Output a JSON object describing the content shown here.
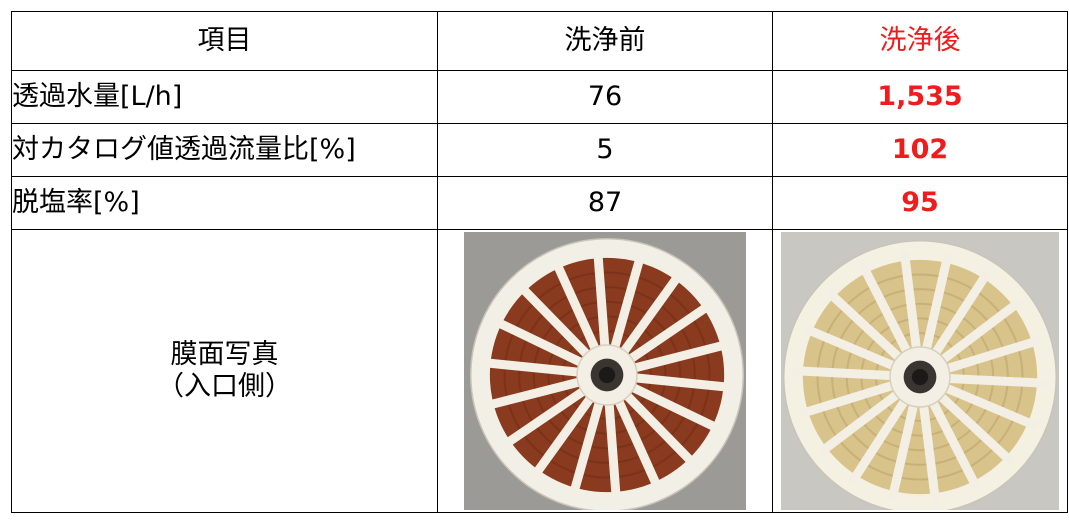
{
  "table": {
    "headers": {
      "item": "項目",
      "before": "洗浄前",
      "after": "洗浄後"
    },
    "rows": [
      {
        "label": "透過水量[L/h]",
        "before": "76",
        "after": "1,535"
      },
      {
        "label": "対カタログ値透過流量比[%]",
        "before": "5",
        "after": "102"
      },
      {
        "label": "脱塩率[%]",
        "before": "87",
        "after": "95"
      }
    ],
    "photo_row": {
      "label_line1": "膜面写真",
      "label_line2": "（入口側）"
    }
  },
  "colors": {
    "after_text": "#ee1c1c",
    "before_fouling": "#8a3a1e",
    "after_membrane": "#d8c38a",
    "spoke": "#f3efe4"
  },
  "photos": {
    "before": "membrane-inlet-before-cleaning-photo",
    "after": "membrane-inlet-after-cleaning-photo"
  }
}
